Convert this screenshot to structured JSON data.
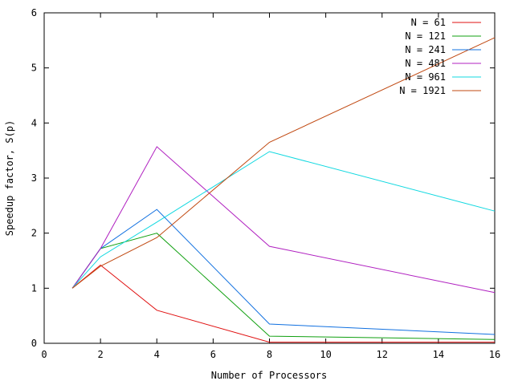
{
  "chart_data": {
    "type": "line",
    "xlabel": "Number of Processors",
    "ylabel": "Speedup factor, S(p)",
    "xlim": [
      0,
      16
    ],
    "ylim": [
      0,
      6
    ],
    "xticks": [
      0,
      2,
      4,
      6,
      8,
      10,
      12,
      14,
      16
    ],
    "yticks": [
      0,
      1,
      2,
      3,
      4,
      5,
      6
    ],
    "grid": false,
    "legend_position": "top-right",
    "x": [
      1,
      2,
      4,
      8,
      16
    ],
    "series": [
      {
        "name": "N = 61",
        "color": "#e01010",
        "values": [
          1,
          1.42,
          0.6,
          0.02,
          0.02
        ]
      },
      {
        "name": "N = 121",
        "color": "#10a010",
        "values": [
          1,
          1.72,
          2.0,
          0.13,
          0.07
        ]
      },
      {
        "name": "N = 241",
        "color": "#1070e0",
        "values": [
          1,
          1.72,
          2.43,
          0.35,
          0.16
        ]
      },
      {
        "name": "N = 481",
        "color": "#b020c0",
        "values": [
          1,
          1.72,
          3.57,
          1.76,
          0.92
        ]
      },
      {
        "name": "N = 961",
        "color": "#10d8e0",
        "values": [
          1,
          1.57,
          2.2,
          3.48,
          2.4
        ]
      },
      {
        "name": "N = 1921",
        "color": "#c04810",
        "values": [
          1,
          1.4,
          1.92,
          3.65,
          5.55
        ]
      }
    ]
  }
}
